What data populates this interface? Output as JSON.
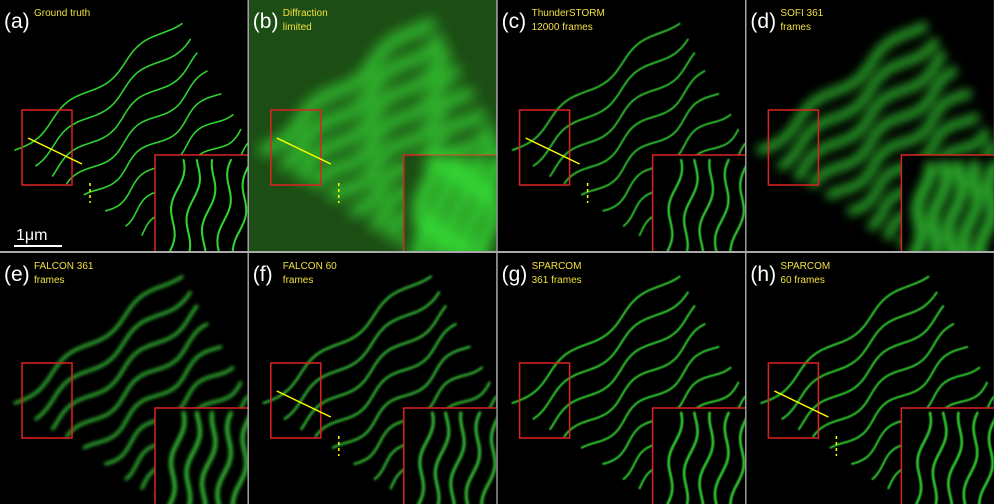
{
  "panels": [
    {
      "label": "(a)",
      "caption": [
        "Ground truth"
      ]
    },
    {
      "label": "(b)",
      "caption": [
        "Diffraction",
        "limited"
      ]
    },
    {
      "label": "(c)",
      "caption": [
        "ThunderSTORM",
        "12000 frames"
      ]
    },
    {
      "label": "(d)",
      "caption": [
        "SOFI 361",
        "frames"
      ]
    },
    {
      "label": "(e)",
      "caption": [
        "FALCON 361",
        "frames"
      ]
    },
    {
      "label": "(f)",
      "caption": [
        "FALCON 60",
        "frames"
      ]
    },
    {
      "label": "(g)",
      "caption": [
        "SPARCOM",
        "361 frames"
      ]
    },
    {
      "label": "(h)",
      "caption": [
        "SPARCOM",
        "60 frames"
      ]
    }
  ],
  "scale_bar": "1μm"
}
